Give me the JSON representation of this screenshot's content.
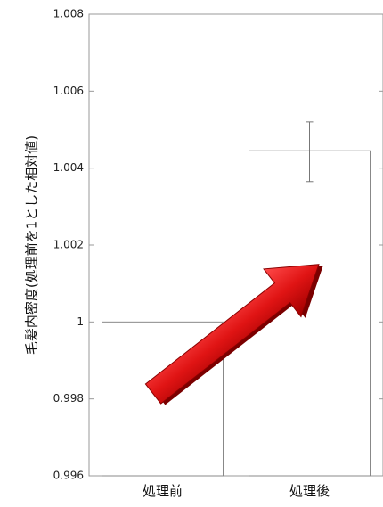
{
  "chart_data": {
    "type": "bar",
    "categories": [
      "処理前",
      "処理後"
    ],
    "values": [
      1.0,
      1.00445
    ],
    "error_low": [
      null,
      1.00365
    ],
    "error_high": [
      null,
      1.0052
    ],
    "ylabel": "毛髪内密度(処理前を1とした相対値)",
    "ylim": [
      0.996,
      1.008
    ],
    "yticks": [
      0.996,
      0.998,
      1.0,
      1.002,
      1.004,
      1.006,
      1.008
    ],
    "ytick_labels": [
      "0.996",
      "0.998",
      "1",
      "1.002",
      "1.004",
      "1.006",
      "1.008"
    ],
    "grid": false,
    "bar_fill": "#ffffff",
    "bar_stroke": "#888888",
    "arrow_color": "#e01414"
  }
}
